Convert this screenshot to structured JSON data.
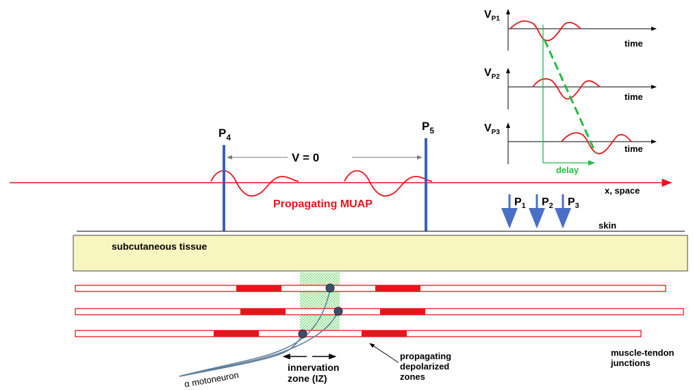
{
  "labels": {
    "p4": "P",
    "p4_sub": "4",
    "p5": "P",
    "p5_sub": "5",
    "velocity": "V = 0",
    "propagating_muap": "Propagating MUAP",
    "x_space": "x, space",
    "skin": "skin",
    "subcutaneous": "subcutaneous tissue",
    "p1": "P",
    "p1_sub": "1",
    "p2": "P",
    "p2_sub": "2",
    "p3": "P",
    "p3_sub": "3",
    "vp1": "V",
    "vp1_sub": "P1",
    "vp2": "V",
    "vp2_sub": "P2",
    "vp3": "V",
    "vp3_sub": "P3",
    "time": "time",
    "delay": "delay",
    "motoneuron": "α motoneuron",
    "innervation_line1": "innervation",
    "innervation_line2": "zone (IZ)",
    "depol_line1": "propagating",
    "depol_line2": "depolarized",
    "depol_line3": "zones",
    "tendon_line1": "muscle-tendon",
    "tendon_line2": "junctions"
  },
  "colors": {
    "red": "#e8141b",
    "electrode_blue": "#3a5fbf",
    "arrow_blue": "#4a6fc6",
    "tissue_fill": "#f8f6c0",
    "green": "#22bb44",
    "dark_green": "#1a8c3a",
    "neuron": "#5f7f9a"
  },
  "icons": [
    "electrode-icon",
    "down-arrow-icon",
    "motor-endplate-icon"
  ]
}
